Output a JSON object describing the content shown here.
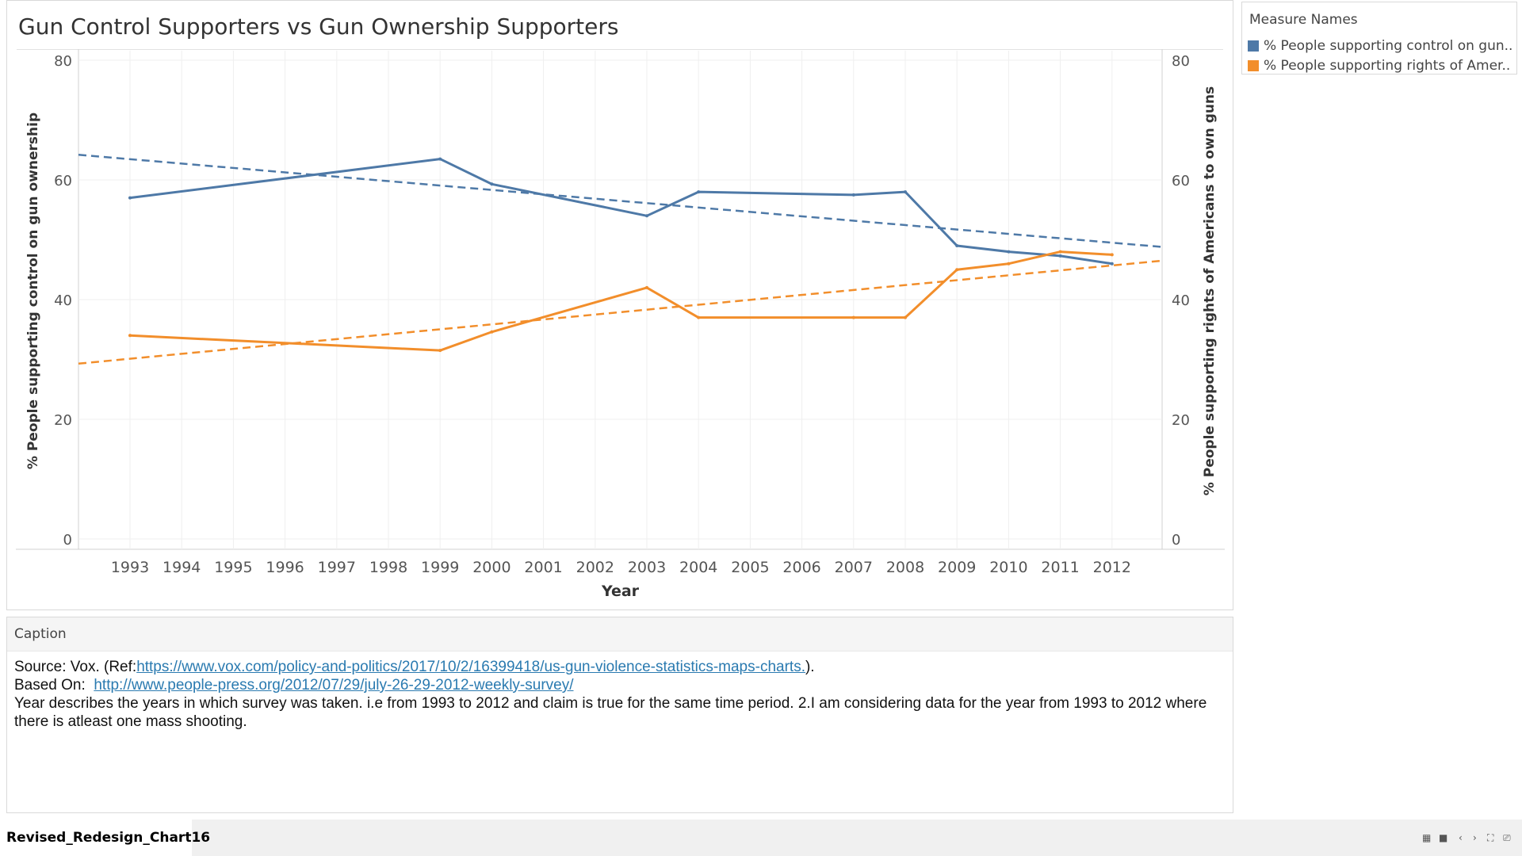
{
  "chart_data": {
    "type": "line",
    "title": "Gun Control Supporters vs Gun Ownership Supporters",
    "xlabel": "Year",
    "ylabel_left": "% People supporting control on gun ownership",
    "ylabel_right": "% People supporting rights of Americans to own guns",
    "categories": [
      "1993",
      "1994",
      "1995",
      "1996",
      "1997",
      "1998",
      "1999",
      "2000",
      "2001",
      "2002",
      "2003",
      "2004",
      "2005",
      "2006",
      "2007",
      "2008",
      "2009",
      "2010",
      "2011",
      "2012"
    ],
    "yticks": [
      "0",
      "20",
      "40",
      "60",
      "80"
    ],
    "ylim": [
      0,
      80
    ],
    "grid": true,
    "series": [
      {
        "name": "% People supporting control on gun..",
        "color": "#4e79a7",
        "x": [
          1993,
          1999,
          2000,
          2003,
          2004,
          2007,
          2008,
          2009,
          2010,
          2011,
          2012
        ],
        "values": [
          57,
          63.5,
          59.3,
          54,
          58,
          57.5,
          58,
          49,
          48,
          47.3,
          46
        ],
        "trend": [
          64.2,
          48.8
        ]
      },
      {
        "name": "% People supporting rights of Amer..",
        "color": "#f28e2b",
        "x": [
          1993,
          1999,
          2000,
          2003,
          2004,
          2007,
          2008,
          2009,
          2010,
          2011,
          2012
        ],
        "values": [
          34,
          31.5,
          34.6,
          42,
          37,
          37,
          37,
          45,
          46,
          48,
          47.5
        ],
        "trend": [
          29.3,
          46.5
        ]
      }
    ]
  },
  "legend": {
    "title": "Measure Names",
    "items": [
      {
        "label": "% People supporting control on gun..",
        "color": "#4e79a7"
      },
      {
        "label": "% People supporting rights of Amer..",
        "color": "#f28e2b"
      }
    ]
  },
  "caption": {
    "header": "Caption",
    "source_prefix": "Source: Vox. (Ref:",
    "source_link": "https://www.vox.com/policy-and-politics/2017/10/2/16399418/us-gun-violence-statistics-maps-charts.",
    "source_suffix": ").",
    "based_prefix": "Based On: ",
    "based_link": "http://www.people-press.org/2012/07/29/july-26-29-2012-weekly-survey/",
    "description": "Year describes the years in which survey was taken. i.e from 1993 to 2012 and claim is true for the same time period. 2.I am considering data for the year from 1993 to 2012 where there is atleast one mass shooting."
  },
  "footer": {
    "sheet_tab": "Revised_Redesign_Chart16"
  }
}
